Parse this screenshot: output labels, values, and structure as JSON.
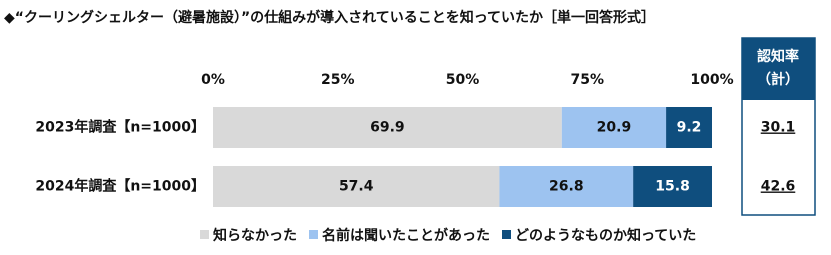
{
  "chart_data": {
    "type": "stacked-bar-horizontal",
    "title": "◆“クーリングシェルター（避暑施設）”の仕組みが導入されていることを知っていたか［単一回答形式］",
    "categories": [
      "2023年調査【n=1000】",
      "2024年調査【n=1000】"
    ],
    "series": [
      {
        "name": "知らなかった",
        "color": "#d9d9d9",
        "values": [
          69.9,
          57.4
        ]
      },
      {
        "name": "名前は聞いたことがあった",
        "color": "#9dc3f0",
        "values": [
          20.9,
          26.8
        ]
      },
      {
        "name": "どのようなものか知っていた",
        "color": "#0f4e7e",
        "values": [
          9.2,
          15.8
        ]
      }
    ],
    "xlim": [
      0,
      100
    ],
    "xticks": [
      {
        "value": 0,
        "label": "0%"
      },
      {
        "value": 25,
        "label": "25%"
      },
      {
        "value": 50,
        "label": "50%"
      },
      {
        "value": 75,
        "label": "75%"
      },
      {
        "value": 100,
        "label": "100%"
      }
    ],
    "legend": "bottom",
    "side_panel": {
      "title": "認知率",
      "subtitle": "（計）",
      "values": [
        30.1,
        42.6
      ]
    }
  }
}
